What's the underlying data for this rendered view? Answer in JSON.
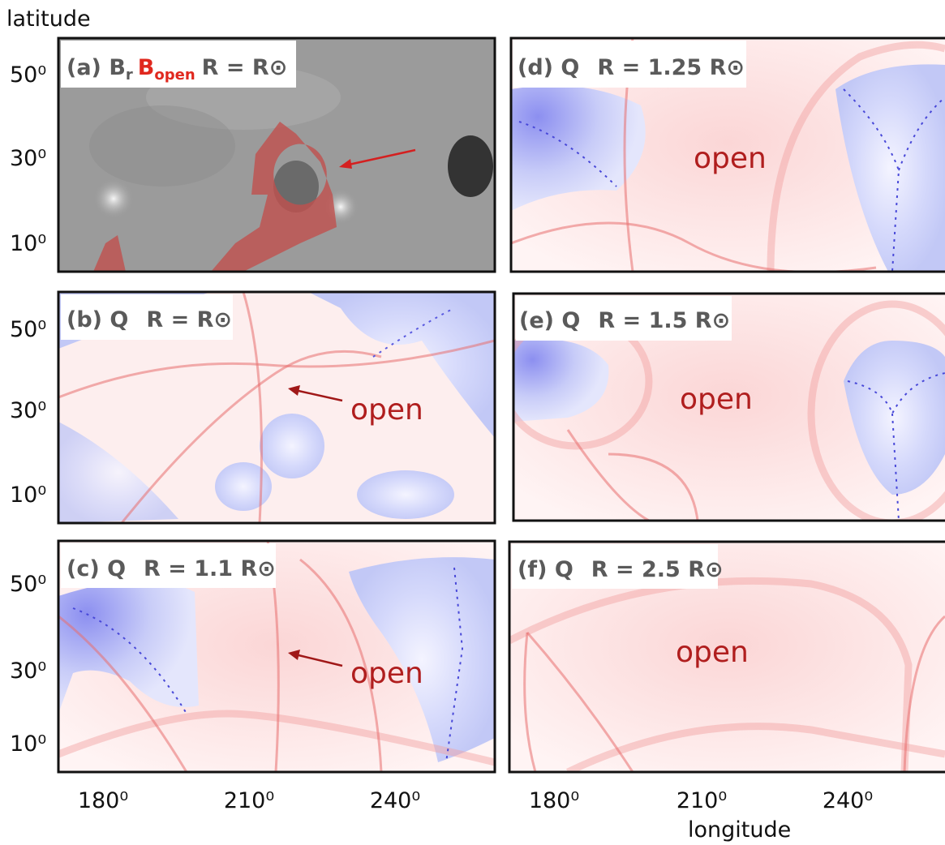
{
  "axes": {
    "y_label": "latitude",
    "x_label": "longitude",
    "y_ticks": [
      "50⁰",
      "30⁰",
      "10⁰"
    ],
    "x_ticks": [
      "180⁰",
      "210⁰",
      "240⁰"
    ]
  },
  "panels": [
    {
      "tag": "(a)",
      "quantity": "B",
      "quantity_sub": "r",
      "overlay": "B",
      "overlay_sub": "open",
      "radius": "R = R",
      "sun": "⊙"
    },
    {
      "tag": "(b)",
      "quantity": "Q",
      "radius": "R = R",
      "sun": "⊙",
      "annotation": "open"
    },
    {
      "tag": "(c)",
      "quantity": "Q",
      "radius": "R = 1.1 R",
      "sun": "⊙",
      "annotation": "open"
    },
    {
      "tag": "(d)",
      "quantity": "Q",
      "radius": "R = 1.25 R",
      "sun": "⊙",
      "annotation": "open"
    },
    {
      "tag": "(e)",
      "quantity": "Q",
      "radius": "R = 1.5 R",
      "sun": "⊙",
      "annotation": "open"
    },
    {
      "tag": "(f)",
      "quantity": "Q",
      "radius": "R = 2.5 R",
      "sun": "⊙",
      "annotation": "open"
    }
  ]
}
